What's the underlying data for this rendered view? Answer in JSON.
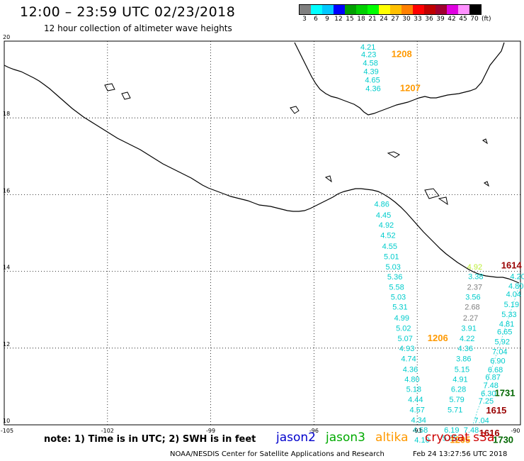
{
  "header": {
    "title": "12:00 – 23:59 UTC 02/23/2018",
    "subtitle": "12 hour collection of altimeter wave heights"
  },
  "color_scale": {
    "labels": [
      "3",
      "6",
      "9",
      "12",
      "15",
      "18",
      "21",
      "24",
      "27",
      "30",
      "33",
      "36",
      "39",
      "42",
      "45",
      "70"
    ],
    "unit": "(ft)",
    "colors": [
      "#808080",
      "#00ffff",
      "#00c8ff",
      "#0000ff",
      "#00a000",
      "#00d000",
      "#00ff00",
      "#ffff00",
      "#ffc000",
      "#ff8000",
      "#ff0000",
      "#c00000",
      "#a00030",
      "#e000e0",
      "#ff90ff",
      "#000000"
    ]
  },
  "axes": {
    "lon_labels": [
      "-105",
      "-102",
      "-99",
      "-96",
      "-93",
      "-90"
    ],
    "lat_labels": [
      "20",
      "18",
      "16",
      "14",
      "12",
      "10"
    ]
  },
  "track_labels": [
    {
      "text": "4.21",
      "color": "#00cccc",
      "lon": -94.65,
      "lat": 19.78
    },
    {
      "text": "4.23",
      "color": "#00cccc",
      "lon": -94.63,
      "lat": 19.58
    },
    {
      "text": "4.58",
      "color": "#00cccc",
      "lon": -94.58,
      "lat": 19.36
    },
    {
      "text": "4.39",
      "color": "#00cccc",
      "lon": -94.56,
      "lat": 19.14
    },
    {
      "text": "4.65",
      "color": "#00cccc",
      "lon": -94.52,
      "lat": 18.92
    },
    {
      "text": "4.36",
      "color": "#00cccc",
      "lon": -94.5,
      "lat": 18.7
    },
    {
      "text": "1208",
      "color": "#ff9900",
      "lon": -93.75,
      "lat": 19.58
    },
    {
      "text": "1207",
      "color": "#ff9900",
      "lon": -93.5,
      "lat": 18.7
    },
    {
      "text": "4.86",
      "color": "#00cccc",
      "lon": -94.25,
      "lat": 15.68
    },
    {
      "text": "4.45",
      "color": "#00cccc",
      "lon": -94.2,
      "lat": 15.4
    },
    {
      "text": "4.92",
      "color": "#00cccc",
      "lon": -94.12,
      "lat": 15.14
    },
    {
      "text": "4.52",
      "color": "#00cccc",
      "lon": -94.07,
      "lat": 14.87
    },
    {
      "text": "4.55",
      "color": "#00cccc",
      "lon": -94.02,
      "lat": 14.58
    },
    {
      "text": "5.01",
      "color": "#00cccc",
      "lon": -93.97,
      "lat": 14.32
    },
    {
      "text": "5.03",
      "color": "#00cccc",
      "lon": -93.92,
      "lat": 14.05
    },
    {
      "text": "5.36",
      "color": "#00cccc",
      "lon": -93.87,
      "lat": 13.79
    },
    {
      "text": "5.58",
      "color": "#00cccc",
      "lon": -93.82,
      "lat": 13.52
    },
    {
      "text": "5.03",
      "color": "#00cccc",
      "lon": -93.77,
      "lat": 13.26
    },
    {
      "text": "5.31",
      "color": "#00cccc",
      "lon": -93.72,
      "lat": 13.0
    },
    {
      "text": "4.99",
      "color": "#00cccc",
      "lon": -93.67,
      "lat": 12.72
    },
    {
      "text": "5.02",
      "color": "#00cccc",
      "lon": -93.62,
      "lat": 12.45
    },
    {
      "text": "5.07",
      "color": "#00cccc",
      "lon": -93.57,
      "lat": 12.18
    },
    {
      "text": "4.93",
      "color": "#00cccc",
      "lon": -93.52,
      "lat": 11.92
    },
    {
      "text": "4.74",
      "color": "#00cccc",
      "lon": -93.47,
      "lat": 11.65
    },
    {
      "text": "4.36",
      "color": "#00cccc",
      "lon": -93.42,
      "lat": 11.38
    },
    {
      "text": "4.80",
      "color": "#00cccc",
      "lon": -93.37,
      "lat": 11.12
    },
    {
      "text": "5.18",
      "color": "#00cccc",
      "lon": -93.32,
      "lat": 10.86
    },
    {
      "text": "4.44",
      "color": "#00cccc",
      "lon": -93.27,
      "lat": 10.59
    },
    {
      "text": "4.57",
      "color": "#00cccc",
      "lon": -93.22,
      "lat": 10.32
    },
    {
      "text": "4.34",
      "color": "#00cccc",
      "lon": -93.18,
      "lat": 10.06
    },
    {
      "text": "4.58",
      "color": "#00cccc",
      "lon": -93.13,
      "lat": 9.8
    },
    {
      "text": "4.10",
      "color": "#00cccc",
      "lon": -93.08,
      "lat": 9.54
    },
    {
      "text": "1206",
      "color": "#ff9900",
      "lon": -92.7,
      "lat": 12.18
    },
    {
      "text": "4.92",
      "color": "#bbee33",
      "lon": -91.55,
      "lat": 14.05
    },
    {
      "text": "3.38",
      "color": "#00cccc",
      "lon": -91.52,
      "lat": 13.8
    },
    {
      "text": "2.37",
      "color": "#808080",
      "lon": -91.55,
      "lat": 13.52
    },
    {
      "text": "3.56",
      "color": "#00cccc",
      "lon": -91.6,
      "lat": 13.26
    },
    {
      "text": "2.68",
      "color": "#808080",
      "lon": -91.62,
      "lat": 13.0
    },
    {
      "text": "2.27",
      "color": "#808080",
      "lon": -91.67,
      "lat": 12.72
    },
    {
      "text": "3.91",
      "color": "#00cccc",
      "lon": -91.72,
      "lat": 12.45
    },
    {
      "text": "4.22",
      "color": "#00cccc",
      "lon": -91.77,
      "lat": 12.18
    },
    {
      "text": "4.36",
      "color": "#00cccc",
      "lon": -91.82,
      "lat": 11.92
    },
    {
      "text": "3.86",
      "color": "#00cccc",
      "lon": -91.87,
      "lat": 11.65
    },
    {
      "text": "5.15",
      "color": "#00cccc",
      "lon": -91.92,
      "lat": 11.38
    },
    {
      "text": "4.91",
      "color": "#00cccc",
      "lon": -91.97,
      "lat": 11.12
    },
    {
      "text": "6.28",
      "color": "#00cccc",
      "lon": -92.02,
      "lat": 10.86
    },
    {
      "text": "5.79",
      "color": "#00cccc",
      "lon": -92.07,
      "lat": 10.59
    },
    {
      "text": "5.71",
      "color": "#00cccc",
      "lon": -92.12,
      "lat": 10.32
    },
    {
      "text": "6.19",
      "color": "#00cccc",
      "lon": -92.22,
      "lat": 9.8
    },
    {
      "text": "5.85",
      "color": "#00cccc",
      "lon": -92.27,
      "lat": 9.58
    },
    {
      "text": "1614",
      "color": "#990000",
      "lon": -90.56,
      "lat": 14.08
    },
    {
      "text": "4.20",
      "color": "#00cccc",
      "lon": -90.3,
      "lat": 13.8
    },
    {
      "text": "4.80",
      "color": "#00cccc",
      "lon": -90.35,
      "lat": 13.55
    },
    {
      "text": "4.04",
      "color": "#00cccc",
      "lon": -90.42,
      "lat": 13.34
    },
    {
      "text": "5.19",
      "color": "#00cccc",
      "lon": -90.48,
      "lat": 13.07
    },
    {
      "text": "5.33",
      "color": "#00cccc",
      "lon": -90.55,
      "lat": 12.81
    },
    {
      "text": "4.81",
      "color": "#00cccc",
      "lon": -90.62,
      "lat": 12.56
    },
    {
      "text": "6.65",
      "color": "#00cccc",
      "lon": -90.68,
      "lat": 12.36
    },
    {
      "text": "5.92",
      "color": "#00cccc",
      "lon": -90.75,
      "lat": 12.1
    },
    {
      "text": "7.04",
      "color": "#00cccc",
      "lon": -90.82,
      "lat": 11.84
    },
    {
      "text": "6.90",
      "color": "#00cccc",
      "lon": -90.88,
      "lat": 11.6
    },
    {
      "text": "6.68",
      "color": "#00cccc",
      "lon": -90.95,
      "lat": 11.37
    },
    {
      "text": "6.87",
      "color": "#00cccc",
      "lon": -91.02,
      "lat": 11.17
    },
    {
      "text": "7.48",
      "color": "#00cccc",
      "lon": -91.08,
      "lat": 10.96
    },
    {
      "text": "6.30",
      "color": "#00cccc",
      "lon": -91.15,
      "lat": 10.75
    },
    {
      "text": "7.25",
      "color": "#00cccc",
      "lon": -91.22,
      "lat": 10.55
    },
    {
      "text": "7.04",
      "color": "#00cccc",
      "lon": -91.35,
      "lat": 10.05
    },
    {
      "text": "7.48",
      "color": "#00cccc",
      "lon": -91.65,
      "lat": 9.8
    },
    {
      "text": "1731",
      "color": "#006600",
      "lon": -90.75,
      "lat": 10.75
    },
    {
      "text": "1615",
      "color": "#990000",
      "lon": -91.0,
      "lat": 10.3
    },
    {
      "text": "1616",
      "color": "#990000",
      "lon": -91.2,
      "lat": 9.7
    },
    {
      "text": "1730",
      "color": "#006600",
      "lon": -90.8,
      "lat": 9.53
    },
    {
      "text": "1205",
      "color": "#ff9900",
      "lon": -92.05,
      "lat": 9.53
    }
  ],
  "footer": {
    "note": "note: 1) Time is in UTC; 2) SWH is in feet",
    "satellites": [
      {
        "name": "jason2",
        "color": "#0000cc"
      },
      {
        "name": "jason3",
        "color": "#00aa00"
      },
      {
        "name": "altika",
        "color": "#ff9900"
      },
      {
        "name": "cryosat s3a",
        "color": "#cc0000"
      }
    ],
    "credit": "NOAA/NESDIS Center for Satellite Applications and Research",
    "timestamp": "Feb 24 13:27:56 UTC 2018"
  }
}
